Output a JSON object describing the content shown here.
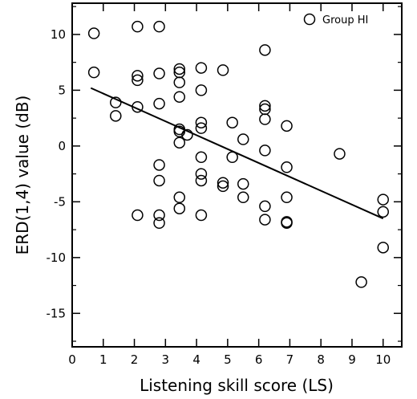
{
  "chart_data": {
    "type": "scatter",
    "title": "",
    "xlabel": "Listening skill score (LS)",
    "ylabel": "ERD(1,4) value (dB)",
    "xlim": [
      0,
      10.6
    ],
    "ylim": [
      -18,
      12.8
    ],
    "xticks": [
      0,
      1,
      2,
      3,
      4,
      5,
      6,
      7,
      8,
      9,
      10
    ],
    "yticks": [
      10,
      5,
      0,
      -5,
      -10,
      -15
    ],
    "grid": false,
    "legend": {
      "position": "top-right"
    },
    "series": [
      {
        "name": "Group HI",
        "marker": "open-circle",
        "points": [
          [
            0.7,
            10.1
          ],
          [
            0.7,
            6.6
          ],
          [
            1.4,
            3.9
          ],
          [
            1.4,
            2.7
          ],
          [
            2.1,
            10.7
          ],
          [
            2.1,
            6.3
          ],
          [
            2.1,
            5.9
          ],
          [
            2.1,
            3.5
          ],
          [
            2.1,
            -6.2
          ],
          [
            2.8,
            10.7
          ],
          [
            2.8,
            6.5
          ],
          [
            2.8,
            3.8
          ],
          [
            2.8,
            -1.7
          ],
          [
            2.8,
            -3.1
          ],
          [
            2.8,
            -6.2
          ],
          [
            2.8,
            -6.9
          ],
          [
            3.45,
            6.9
          ],
          [
            3.45,
            6.6
          ],
          [
            3.45,
            5.7
          ],
          [
            3.45,
            4.4
          ],
          [
            3.45,
            1.5
          ],
          [
            3.45,
            1.3
          ],
          [
            3.45,
            0.3
          ],
          [
            3.45,
            -4.6
          ],
          [
            3.45,
            -5.6
          ],
          [
            3.7,
            1.0
          ],
          [
            4.15,
            7.0
          ],
          [
            4.15,
            5.0
          ],
          [
            4.15,
            2.1
          ],
          [
            4.15,
            1.6
          ],
          [
            4.15,
            -1.0
          ],
          [
            4.15,
            -2.5
          ],
          [
            4.15,
            -3.1
          ],
          [
            4.15,
            -6.2
          ],
          [
            4.85,
            6.8
          ],
          [
            4.85,
            -3.3
          ],
          [
            4.85,
            -3.6
          ],
          [
            5.15,
            2.1
          ],
          [
            5.15,
            -1.0
          ],
          [
            5.5,
            0.6
          ],
          [
            5.5,
            -3.4
          ],
          [
            5.5,
            -4.6
          ],
          [
            6.2,
            8.6
          ],
          [
            6.2,
            3.6
          ],
          [
            6.2,
            3.3
          ],
          [
            6.2,
            2.4
          ],
          [
            6.2,
            -0.4
          ],
          [
            6.2,
            -5.4
          ],
          [
            6.2,
            -6.6
          ],
          [
            6.9,
            1.8
          ],
          [
            6.9,
            -1.9
          ],
          [
            6.9,
            -4.6
          ],
          [
            6.9,
            -6.8
          ],
          [
            6.9,
            -6.9
          ],
          [
            8.6,
            -0.7
          ],
          [
            9.3,
            -12.2
          ],
          [
            10.0,
            -4.8
          ],
          [
            10.0,
            -5.9
          ],
          [
            10.0,
            -9.1
          ]
        ]
      }
    ],
    "fit_line": {
      "x": [
        0.6,
        10.0
      ],
      "y": [
        5.2,
        -6.5
      ]
    }
  }
}
